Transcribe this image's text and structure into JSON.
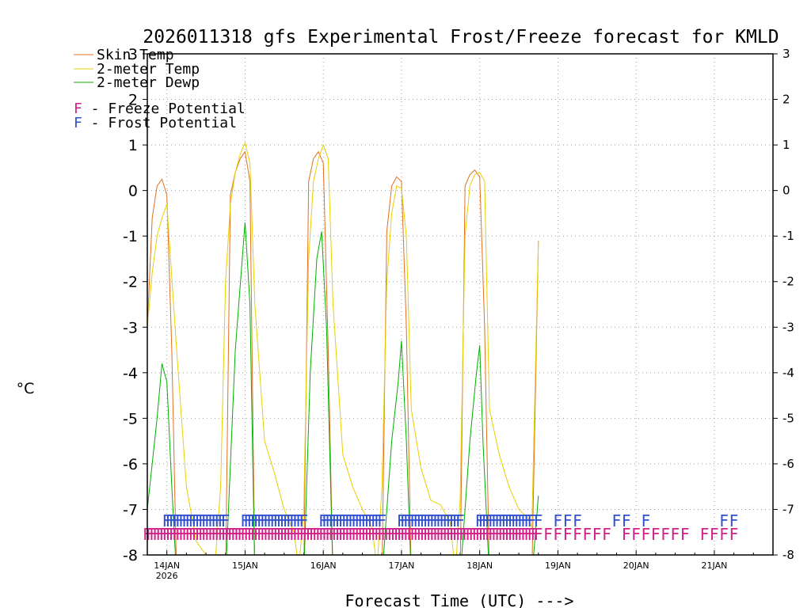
{
  "colors": {
    "skin": "#e07020",
    "t2m": "#e8d000",
    "dewp": "#00b000",
    "freeze": "#d0208a",
    "frost": "#3050d0",
    "grid": "#a0a0a0"
  },
  "chart_data": {
    "type": "line",
    "title": "2026011318 gfs Experimental Frost/Freeze forecast for KMLD",
    "xlabel": "Forecast Time (UTC) --->",
    "ylabel": "°C",
    "ylim": [
      -8,
      3
    ],
    "yticks": [
      "-8",
      "-7",
      "-6",
      "-5",
      "-4",
      "-3",
      "-2",
      "-1",
      "0",
      "1",
      "2",
      "3"
    ],
    "xlim_hours": [
      0,
      192
    ],
    "x_ticks": [
      {
        "label": "14JAN",
        "sub": "2026",
        "hour": 6
      },
      {
        "label": "15JAN",
        "sub": "",
        "hour": 30
      },
      {
        "label": "16JAN",
        "sub": "",
        "hour": 54
      },
      {
        "label": "17JAN",
        "sub": "",
        "hour": 78
      },
      {
        "label": "18JAN",
        "sub": "",
        "hour": 102
      },
      {
        "label": "19JAN",
        "sub": "",
        "hour": 126
      },
      {
        "label": "20JAN",
        "sub": "",
        "hour": 150
      },
      {
        "label": "21JAN",
        "sub": "",
        "hour": 174
      }
    ],
    "legend": {
      "skin": "Skin Temp",
      "t2m": "2-meter Temp",
      "dewp": "2-meter Dewp",
      "freeze_letter": "F",
      "freeze_text": " - Freeze Potential",
      "frost_letter": "F",
      "frost_text": " - Frost Potential"
    },
    "series": [
      {
        "name": "Skin Temp",
        "key": "skin",
        "x": [
          0,
          1.5,
          3,
          4.5,
          6,
          7.5,
          9,
          24,
          25.5,
          27,
          28.5,
          30,
          31.5,
          33,
          48,
          49.5,
          51,
          52.5,
          54,
          55.5,
          57,
          72,
          73.5,
          75,
          76.5,
          78,
          79.5,
          81,
          96,
          97.5,
          99,
          100.5,
          102,
          103.5,
          105,
          118,
          120
        ],
        "y": [
          -3.0,
          -0.6,
          0.1,
          0.25,
          -0.1,
          -3.5,
          -8.5,
          -8.5,
          -0.1,
          0.4,
          0.7,
          0.85,
          0.2,
          -8.5,
          -8.5,
          0.2,
          0.7,
          0.85,
          0.6,
          -3.5,
          -8.5,
          -8.5,
          -0.9,
          0.1,
          0.3,
          0.2,
          -3.0,
          -8.5,
          -8.5,
          0.1,
          0.35,
          0.45,
          0.3,
          -3.0,
          -8.5,
          -8.5,
          -1.1
        ]
      },
      {
        "name": "2-meter Temp",
        "key": "t2m",
        "x": [
          0,
          1.5,
          3,
          4.5,
          6,
          9,
          12,
          15,
          18,
          21,
          22.5,
          24,
          25.5,
          27,
          28.5,
          30,
          31.5,
          33,
          36,
          39,
          42,
          45,
          46.5,
          48,
          49.5,
          51,
          52.5,
          54,
          55.5,
          57,
          60,
          63,
          66,
          69,
          70.5,
          72,
          73.5,
          75,
          76.5,
          78,
          79.5,
          81,
          84,
          87,
          90,
          93,
          94.5,
          96,
          97.5,
          99,
          100.5,
          102,
          103.5,
          105,
          108,
          111,
          114,
          117,
          118,
          120
        ],
        "y": [
          -3.0,
          -1.8,
          -1.0,
          -0.6,
          -0.3,
          -3.5,
          -6.5,
          -7.7,
          -8.0,
          -8.0,
          -6.5,
          -2.0,
          -0.3,
          0.4,
          0.8,
          1.05,
          0.6,
          -2.5,
          -5.5,
          -6.2,
          -7.0,
          -7.5,
          -8.3,
          -7.0,
          -1.5,
          0.2,
          0.7,
          1.0,
          0.7,
          -2.5,
          -5.8,
          -6.5,
          -7.0,
          -7.4,
          -8.3,
          -6.5,
          -2.0,
          -0.5,
          0.1,
          0.05,
          -1.0,
          -4.8,
          -6.1,
          -6.8,
          -6.9,
          -7.3,
          -8.4,
          -6.8,
          -1.0,
          0.1,
          0.35,
          0.4,
          0.2,
          -4.8,
          -5.8,
          -6.5,
          -7.0,
          -7.2,
          -7.4,
          -1.1
        ]
      },
      {
        "name": "2-meter Dewp",
        "key": "dewp",
        "x": [
          0,
          3,
          4.5,
          6,
          7.5,
          9,
          24,
          27,
          30,
          31.5,
          33,
          48,
          50,
          52,
          53.5,
          55,
          57,
          72,
          75,
          77,
          78,
          79.5,
          81,
          96,
          99,
          101,
          102,
          103,
          105,
          117,
          118,
          120
        ],
        "y": [
          -7.0,
          -5.0,
          -3.8,
          -4.2,
          -6.5,
          -8.5,
          -8.5,
          -3.5,
          -0.7,
          -2.5,
          -8.5,
          -8.5,
          -4.0,
          -1.5,
          -0.9,
          -3.0,
          -8.5,
          -8.5,
          -5.5,
          -4.2,
          -3.3,
          -5.5,
          -8.5,
          -8.5,
          -5.5,
          -4.0,
          -3.4,
          -5.5,
          -8.5,
          -8.5,
          -8.5,
          -6.7
        ]
      }
    ],
    "freeze_potential": {
      "label": "F",
      "y": -7.5,
      "hours": [
        0,
        1,
        2,
        3,
        4,
        5,
        6,
        7,
        8,
        9,
        10,
        11,
        12,
        13,
        14,
        15,
        16,
        17,
        18,
        19,
        20,
        21,
        22,
        23,
        24,
        25,
        26,
        27,
        28,
        29,
        30,
        31,
        32,
        33,
        34,
        35,
        36,
        37,
        38,
        39,
        40,
        41,
        42,
        43,
        44,
        45,
        46,
        47,
        48,
        49,
        50,
        51,
        52,
        53,
        54,
        55,
        56,
        57,
        58,
        59,
        60,
        61,
        62,
        63,
        64,
        65,
        66,
        67,
        68,
        69,
        70,
        71,
        72,
        73,
        74,
        75,
        76,
        77,
        78,
        79,
        80,
        81,
        82,
        83,
        84,
        85,
        86,
        87,
        88,
        89,
        90,
        91,
        92,
        93,
        94,
        95,
        96,
        97,
        98,
        99,
        100,
        101,
        102,
        103,
        104,
        105,
        106,
        107,
        108,
        109,
        110,
        111,
        112,
        113,
        114,
        115,
        116,
        117,
        118,
        119,
        120,
        123,
        126,
        129,
        132,
        135,
        138,
        141,
        147,
        150,
        153,
        156,
        159,
        162,
        165,
        171,
        174,
        177,
        180
      ]
    },
    "frost_potential": {
      "label": "F",
      "y": -7.2,
      "hours": [
        6,
        7,
        8,
        9,
        10,
        11,
        12,
        13,
        14,
        15,
        16,
        17,
        18,
        19,
        20,
        21,
        22,
        23,
        24,
        30,
        31,
        32,
        33,
        34,
        35,
        36,
        37,
        38,
        39,
        40,
        41,
        42,
        43,
        44,
        45,
        46,
        47,
        48,
        54,
        55,
        56,
        57,
        58,
        59,
        60,
        61,
        62,
        63,
        64,
        65,
        66,
        67,
        68,
        69,
        70,
        71,
        72,
        78,
        79,
        80,
        81,
        82,
        83,
        84,
        85,
        86,
        87,
        88,
        89,
        90,
        91,
        92,
        93,
        94,
        95,
        96,
        102,
        103,
        104,
        105,
        106,
        107,
        108,
        109,
        110,
        111,
        112,
        113,
        114,
        115,
        116,
        117,
        118,
        120,
        126,
        129,
        132,
        144,
        147,
        153,
        177,
        180
      ]
    }
  }
}
